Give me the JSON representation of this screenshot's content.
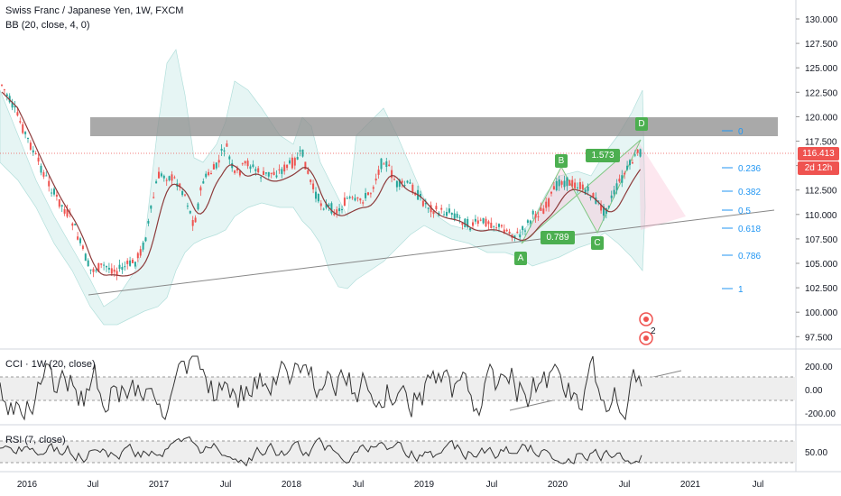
{
  "header": {
    "title": "Swiss Franc / Japanese Yen, 1W, FXCM",
    "indicator": "BB (20, close, 4, 0)"
  },
  "price_axis": {
    "ticks": [
      "130.000",
      "127.500",
      "125.000",
      "122.500",
      "120.000",
      "117.500",
      "115.000",
      "112.500",
      "110.000",
      "107.500",
      "105.000",
      "102.500",
      "100.000",
      "97.500"
    ],
    "current_price": "116.413",
    "countdown": "2d 12h"
  },
  "cci_pane": {
    "label": "CCI · 1W (20, close)",
    "ticks": [
      "200.00",
      "0.00",
      "-200.00"
    ]
  },
  "rsi_pane": {
    "label": "RSI (7, close)",
    "ticks": [
      "50.00"
    ]
  },
  "time_axis": [
    "2016",
    "Jul",
    "2017",
    "Jul",
    "2018",
    "Jul",
    "2019",
    "Jul",
    "2020",
    "Jul",
    "2021",
    "Jul"
  ],
  "fib_levels": [
    "0",
    "0.236",
    "0.382",
    "0.5",
    "0.618",
    "0.786",
    "1"
  ],
  "pattern": {
    "points": [
      "A",
      "B",
      "C",
      "D"
    ],
    "ratios": [
      "0.789",
      "1.573"
    ]
  },
  "colors": {
    "candle_up": "#26a69a",
    "candle_down": "#ef5350",
    "band_fill": "#e0f2f1",
    "resistance_zone": "#8c8c8c",
    "fib": "#2196f3",
    "pattern_green": "#4caf50",
    "price_tag": "#ef5350"
  }
}
